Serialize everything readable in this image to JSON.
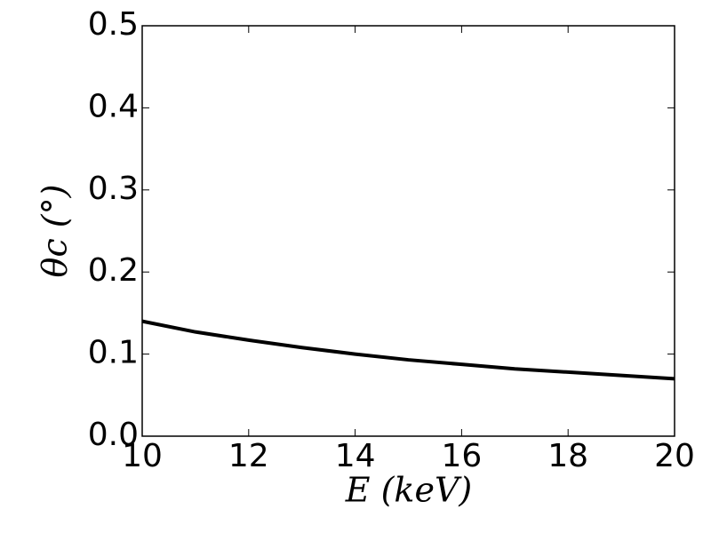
{
  "chart_data": {
    "type": "line",
    "x_label": "E (keV)",
    "y_label": "θc (°)",
    "x": [
      10,
      11,
      12,
      13,
      14,
      15,
      16,
      17,
      18,
      19,
      20
    ],
    "series": [
      {
        "color": "#000000",
        "values": [
          0.14,
          0.127,
          0.117,
          0.108,
          0.1,
          0.093,
          0.0875,
          0.082,
          0.078,
          0.074,
          0.07
        ]
      }
    ],
    "xlim": [
      10,
      20
    ],
    "xticks": [
      10,
      12,
      14,
      16,
      18,
      20
    ],
    "ylim": [
      0,
      0.5
    ],
    "yticks": [
      {
        "value": 0,
        "label": "0.0"
      },
      0.1,
      0.2,
      0.3,
      0.4,
      0.5
    ],
    "grid": false
  }
}
